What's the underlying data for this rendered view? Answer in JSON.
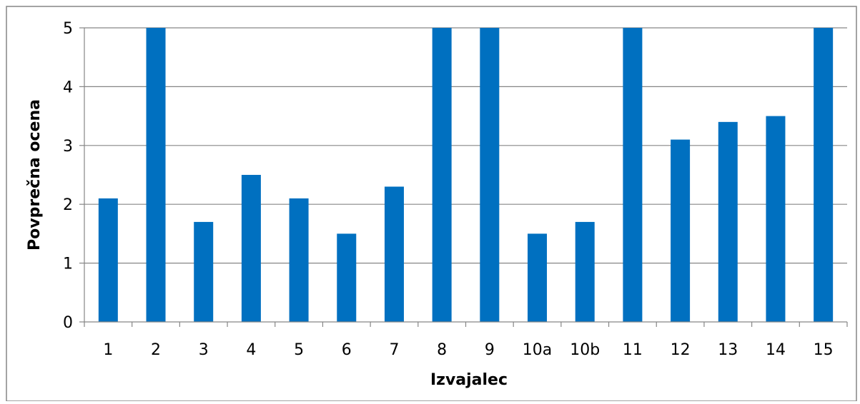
{
  "chart_data": {
    "type": "bar",
    "title": "",
    "xlabel": "Izvajalec",
    "ylabel": "Povprečna ocena",
    "categories": [
      "1",
      "2",
      "3",
      "4",
      "5",
      "6",
      "7",
      "8",
      "9",
      "10a",
      "10b",
      "11",
      "12",
      "13",
      "14",
      "15"
    ],
    "values": [
      2.1,
      5,
      1.7,
      2.5,
      2.1,
      1.5,
      2.3,
      5,
      5,
      1.5,
      1.7,
      5,
      3.1,
      3.4,
      3.5,
      5
    ],
    "ylim": [
      0,
      5
    ],
    "yticks": [
      0,
      1,
      2,
      3,
      4,
      5
    ],
    "grid": true,
    "legend": "none",
    "colors": {
      "bar": "#0070C0",
      "grid": "#868686",
      "axis": "#868686",
      "frame": "#868686"
    }
  }
}
